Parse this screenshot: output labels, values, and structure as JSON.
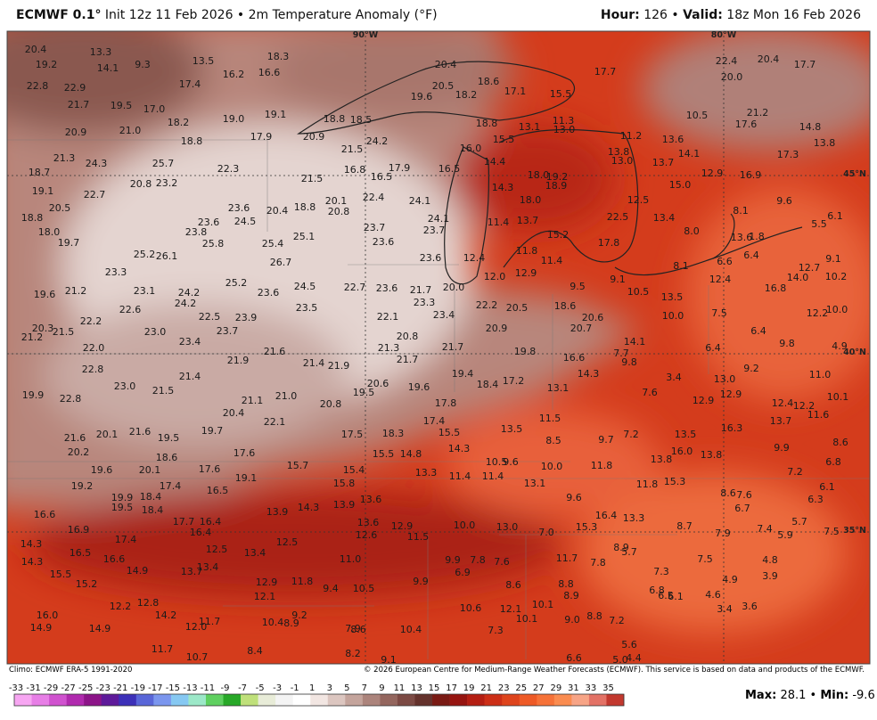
{
  "header": {
    "model": "ECMWF 0.1°",
    "subtitle": "Init 12z 11 Feb 2026 • 2m Temperature Anomaly (°F)",
    "hour_label": "Hour:",
    "hour": "126",
    "separator": "•",
    "valid_label": "Valid:",
    "valid": "18z Mon 16 Feb 2026"
  },
  "map": {
    "grid_labels": [
      "90°W",
      "80°W",
      "45°N",
      "40°N",
      "35°N"
    ],
    "labels": [
      "20.4",
      "19.2",
      "13.3",
      "14.1",
      "9.3",
      "13.5",
      "16.2",
      "16.6",
      "18.3",
      "22.8",
      "22.9",
      "21.7",
      "19.5",
      "17.0",
      "17.4",
      "18.2",
      "19.0",
      "20.9",
      "21.0",
      "18.8",
      "17.9",
      "19.1",
      "20.9",
      "21.5",
      "24.2",
      "18.8",
      "18.5",
      "21.3",
      "24.3",
      "25.7",
      "22.3",
      "20.8",
      "23.2",
      "18.7",
      "19.1",
      "22.7",
      "20.5",
      "18.8",
      "18.0",
      "19.7",
      "23.6",
      "24.5",
      "20.4",
      "18.8",
      "23.6",
      "23.8",
      "25.8",
      "25.4",
      "25.1",
      "26.7",
      "25.2",
      "26.1",
      "23.3",
      "25.2",
      "24.2",
      "24.2",
      "23.6",
      "24.5",
      "19.6",
      "21.2",
      "23.1",
      "22.6",
      "22.5",
      "23.9",
      "23.5",
      "22.7",
      "20.3",
      "21.5",
      "22.2",
      "21.2",
      "22.0",
      "23.4",
      "23.7",
      "23.0",
      "21.9",
      "21.6",
      "21.4",
      "21.9",
      "22.1",
      "21.3",
      "20.8",
      "21.7",
      "23.6",
      "21.7",
      "23.3",
      "23.4",
      "21.7",
      "19.9",
      "22.8",
      "22.8",
      "23.0",
      "21.5",
      "21.4",
      "21.1",
      "21.0",
      "20.4",
      "22.1",
      "20.8",
      "19.5",
      "20.6",
      "19.6",
      "17.8",
      "19.4",
      "18.4",
      "17.2",
      "19.8",
      "20.9",
      "22.2",
      "20.5",
      "18.6",
      "20.6",
      "20.7",
      "16.6",
      "13.1",
      "14.3",
      "7.7",
      "9.8",
      "14.1",
      "10.0",
      "13.5",
      "10.5",
      "9.1",
      "9.5",
      "11.4",
      "12.9",
      "11.8",
      "12.0",
      "12.4",
      "20.0",
      "23.6",
      "24.1",
      "24.1",
      "23.7",
      "23.7",
      "23.6",
      "22.4",
      "20.1",
      "20.8",
      "16.8",
      "16.5",
      "17.9",
      "21.5",
      "20.4",
      "20.5",
      "19.6",
      "18.2",
      "18.6",
      "17.1",
      "15.5",
      "17.7",
      "16.5",
      "16.0",
      "14.4",
      "18.8",
      "15.5",
      "13.1",
      "11.3",
      "13.0",
      "18.0",
      "19.2",
      "18.9",
      "14.3",
      "18.0",
      "11.4",
      "13.7",
      "15.2",
      "22.5",
      "12.5",
      "13.4",
      "8.0",
      "17.8",
      "15.0",
      "13.7",
      "13.0",
      "13.8",
      "11.2",
      "13.6",
      "14.1",
      "10.5",
      "12.9",
      "16.9",
      "17.6",
      "21.2",
      "20.0",
      "22.4",
      "20.4",
      "17.7",
      "14.8",
      "13.8",
      "17.3",
      "8.1",
      "9.6",
      "6.1",
      "5.5",
      "13.6",
      "1.8",
      "6.4",
      "6.6",
      "8.1",
      "12.4",
      "16.8",
      "14.0",
      "12.7",
      "10.2",
      "9.1",
      "12.2",
      "10.0",
      "7.5",
      "6.4",
      "9.8",
      "4.9",
      "6.4",
      "13.0",
      "12.9",
      "9.2",
      "3.4",
      "7.6",
      "12.9",
      "12.4",
      "12.2",
      "13.7",
      "11.6",
      "11.0",
      "10.1",
      "16.3",
      "13.5",
      "16.0",
      "13.8",
      "13.8",
      "9.9",
      "8.6",
      "6.8",
      "7.2",
      "6.1",
      "6.3",
      "8.6",
      "7.6",
      "6.7",
      "5.7",
      "7.4",
      "5.9",
      "7.5",
      "7.9",
      "8.7",
      "15.3",
      "11.8",
      "13.3",
      "16.4",
      "15.3",
      "9.6",
      "11.8",
      "7.2",
      "9.7",
      "8.5",
      "11.5",
      "13.5",
      "10.0",
      "9.6",
      "10.5",
      "11.4",
      "13.1",
      "11.4",
      "13.3",
      "14.3",
      "15.5",
      "17.4",
      "14.8",
      "15.5",
      "18.3",
      "17.5",
      "15.7",
      "15.4",
      "15.8",
      "13.6",
      "13.9",
      "14.3",
      "13.9",
      "19.1",
      "17.6",
      "16.5",
      "17.6",
      "19.7",
      "19.5",
      "18.6",
      "21.6",
      "20.1",
      "21.6",
      "20.2",
      "19.6",
      "20.1",
      "19.2",
      "19.9",
      "18.4",
      "17.4",
      "19.5",
      "18.4",
      "16.6",
      "16.9",
      "17.4",
      "17.7",
      "16.4",
      "16.4",
      "14.3",
      "14.3",
      "16.5",
      "16.6",
      "14.9",
      "15.5",
      "15.2",
      "13.7",
      "13.4",
      "12.5",
      "13.4",
      "12.5",
      "12.9",
      "12.1",
      "11.8",
      "9.4",
      "11.0",
      "10.5",
      "13.6",
      "12.6",
      "12.9",
      "11.5",
      "10.0",
      "13.0",
      "7.0",
      "11.7",
      "7.8",
      "8.9",
      "5.7",
      "7.3",
      "7.5",
      "4.8",
      "3.9",
      "4.9",
      "4.6",
      "6.5",
      "6.8",
      "6.1",
      "3.4",
      "3.6",
      "9.9",
      "7.8",
      "7.6",
      "6.9",
      "8.6",
      "9.9",
      "10.6",
      "12.1",
      "10.1",
      "10.1",
      "8.8",
      "8.9",
      "9.0",
      "8.8",
      "7.2",
      "5.6",
      "4.4",
      "5.0",
      "6.6",
      "7.3",
      "10.4",
      "7.9",
      "8.6",
      "8.2",
      "9.1",
      "9.2",
      "8.9",
      "10.4",
      "11.7",
      "12.0",
      "14.2",
      "12.8",
      "12.2",
      "16.0",
      "14.9",
      "14.9",
      "11.7",
      "10.7",
      "8.4"
    ]
  },
  "footer": {
    "climo": "Climo: ECMWF ERA-5 1991-2020",
    "copyright": "© 2026 European Centre for Medium-Range Weather Forecasts (ECMWF). This service is based on data and products of the ECMWF.",
    "max_label": "Max:",
    "max": "28.1",
    "min_label": "Min:",
    "min": "-9.6"
  },
  "colorbar": {
    "ticks": [
      -33,
      -31,
      -29,
      -27,
      -25,
      -23,
      -21,
      -19,
      -17,
      -15,
      -13,
      -11,
      -9,
      -7,
      -5,
      -3,
      -1,
      1,
      3,
      5,
      7,
      9,
      11,
      13,
      15,
      17,
      19,
      21,
      23,
      25,
      27,
      29,
      31,
      33,
      35
    ],
    "colors": [
      "#f7a6f2",
      "#e77ee6",
      "#d052cf",
      "#b02aae",
      "#8c1488",
      "#5e1a9a",
      "#3c30b8",
      "#5966d8",
      "#7b96ee",
      "#86c8f2",
      "#9ce8c8",
      "#5fd060",
      "#28a828",
      "#bfe07a",
      "#e8ecd8",
      "#f4f4f4",
      "#ffffff",
      "#f2e6e2",
      "#dcc6c0",
      "#c4a49c",
      "#ac847c",
      "#94665e",
      "#7c4a44",
      "#64322c",
      "#7a1a14",
      "#961410",
      "#b41e12",
      "#cc2e16",
      "#de441c",
      "#ee5a26",
      "#f67238",
      "#fa8c50",
      "#f7a486",
      "#e37266",
      "#c2382e"
    ]
  }
}
